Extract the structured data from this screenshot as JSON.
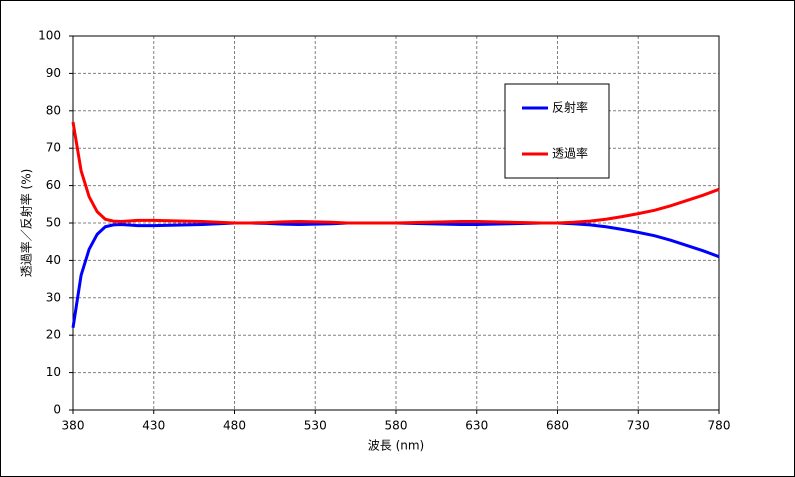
{
  "chart_data": {
    "type": "line",
    "x_label": "波長 (nm)",
    "y_label": "透過率／反射率 (%)",
    "x": [
      380,
      385,
      390,
      395,
      400,
      405,
      410,
      420,
      430,
      440,
      450,
      460,
      470,
      480,
      490,
      500,
      510,
      520,
      530,
      540,
      550,
      560,
      570,
      580,
      590,
      600,
      610,
      620,
      630,
      640,
      650,
      660,
      670,
      680,
      690,
      700,
      710,
      720,
      730,
      740,
      750,
      760,
      770,
      780
    ],
    "series": [
      {
        "name": "反射率",
        "color": "#0000ff",
        "values": [
          22,
          36,
          43,
          47,
          49,
          49.5,
          49.6,
          49.3,
          49.3,
          49.4,
          49.5,
          49.6,
          49.8,
          50,
          50,
          49.9,
          49.7,
          49.6,
          49.7,
          49.8,
          50,
          50,
          50,
          50,
          49.9,
          49.8,
          49.7,
          49.6,
          49.6,
          49.7,
          49.8,
          49.9,
          50,
          50,
          49.8,
          49.5,
          49,
          48.3,
          47.5,
          46.6,
          45.4,
          44,
          42.6,
          41
        ]
      },
      {
        "name": "透過率",
        "color": "#ff0000",
        "values": [
          77,
          64,
          57,
          53,
          51,
          50.5,
          50.4,
          50.7,
          50.7,
          50.6,
          50.5,
          50.4,
          50.2,
          50,
          50,
          50.1,
          50.3,
          50.4,
          50.3,
          50.2,
          50,
          50,
          50,
          50,
          50.1,
          50.2,
          50.3,
          50.4,
          50.4,
          50.3,
          50.2,
          50.1,
          50,
          50,
          50.2,
          50.5,
          51,
          51.7,
          52.5,
          53.4,
          54.6,
          56,
          57.4,
          59
        ]
      }
    ],
    "xlim": [
      380,
      780
    ],
    "xticks": [
      380,
      430,
      480,
      530,
      580,
      630,
      680,
      730,
      780
    ],
    "ylim": [
      0,
      100
    ],
    "yticks": [
      0,
      10,
      20,
      30,
      40,
      50,
      60,
      70,
      80,
      90,
      100
    ],
    "grid": true,
    "legend": "upper-right"
  }
}
